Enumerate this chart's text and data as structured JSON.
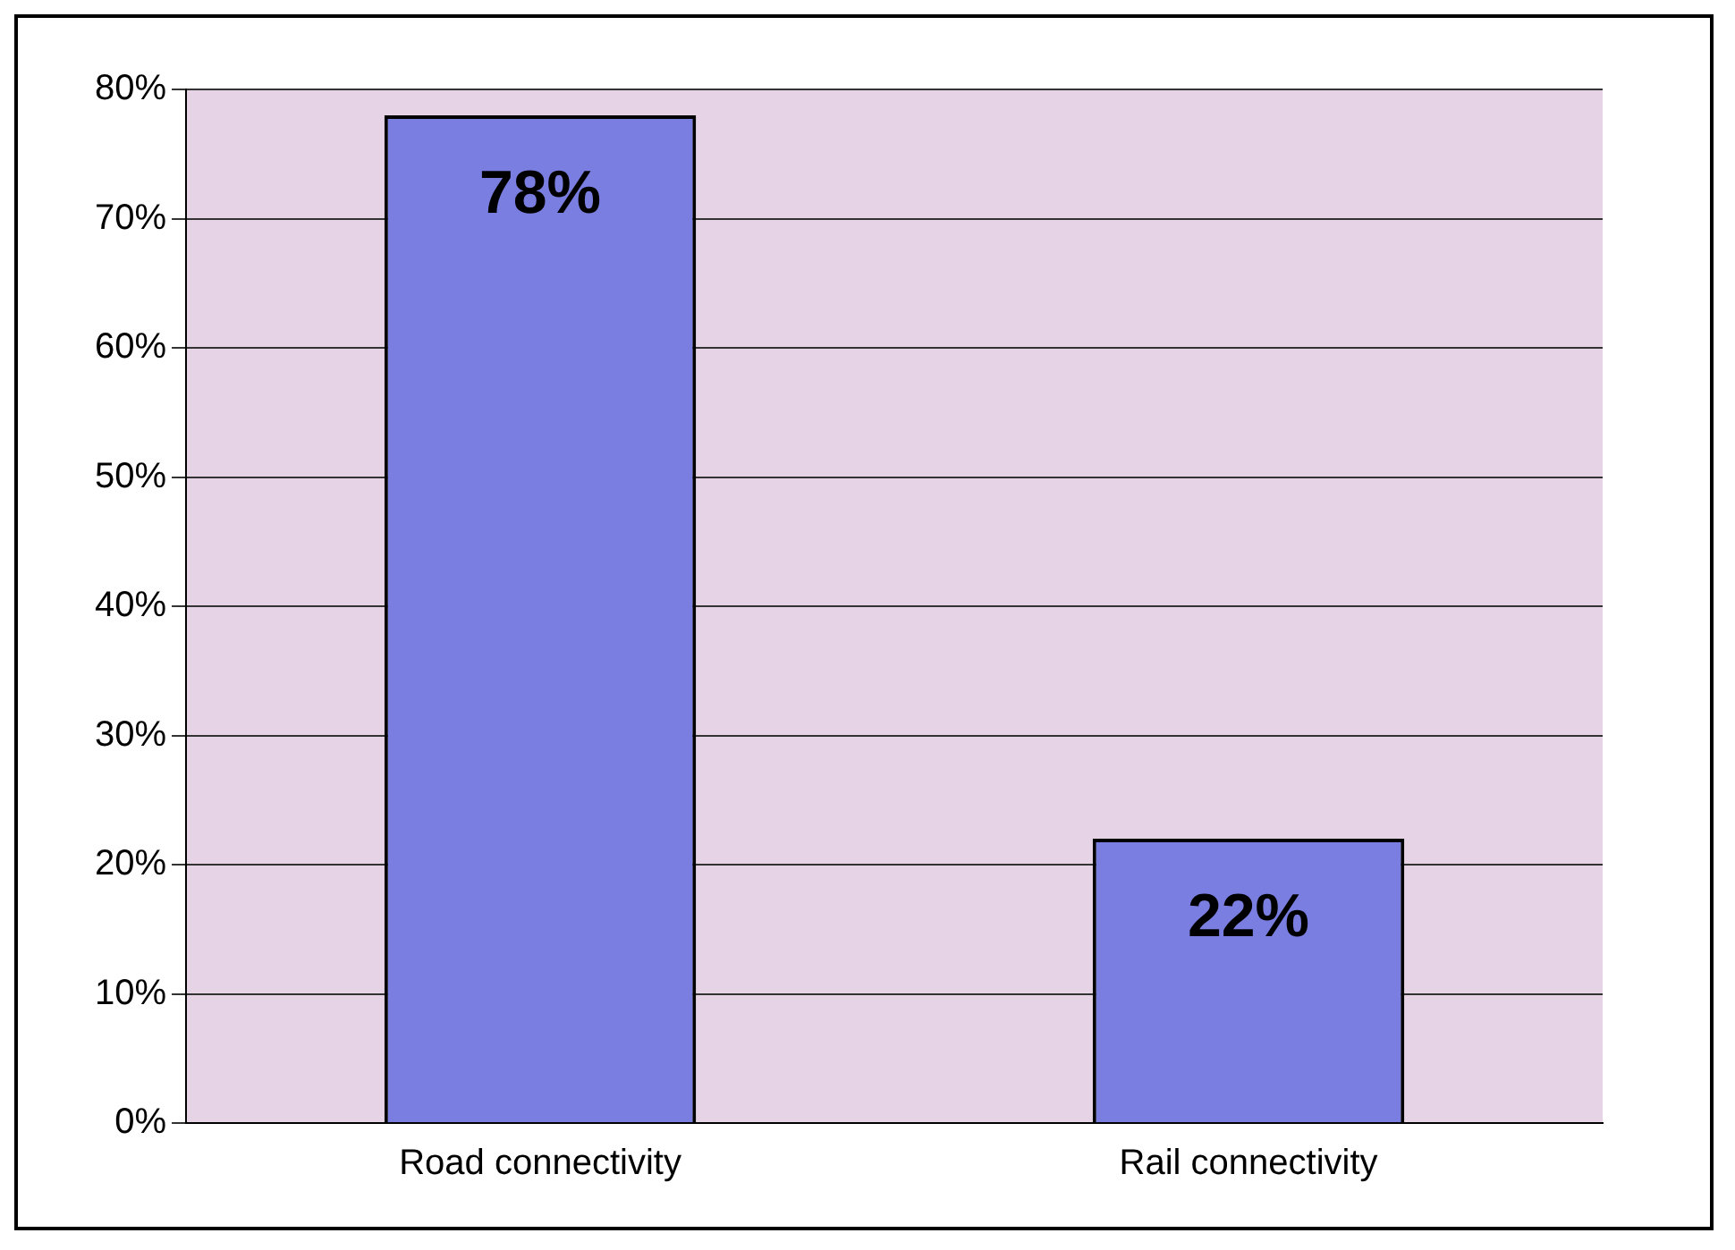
{
  "chart_data": {
    "type": "bar",
    "categories": [
      "Road connectivity",
      "Rail connectivity"
    ],
    "values": [
      78,
      22
    ],
    "color": "#7a7ee0",
    "value_labels": [
      "78%",
      "22%"
    ],
    "ylim": [
      0,
      80
    ],
    "yticks": [
      {
        "value": 0,
        "label": "0%"
      },
      {
        "value": 10,
        "label": "10%"
      },
      {
        "value": 20,
        "label": "20%"
      },
      {
        "value": 30,
        "label": "30%"
      },
      {
        "value": 40,
        "label": "40%"
      },
      {
        "value": 50,
        "label": "50%"
      },
      {
        "value": 60,
        "label": "60%"
      },
      {
        "value": 70,
        "label": "70%"
      },
      {
        "value": 80,
        "label": "80%"
      }
    ],
    "grid": "y",
    "legend": false
  }
}
